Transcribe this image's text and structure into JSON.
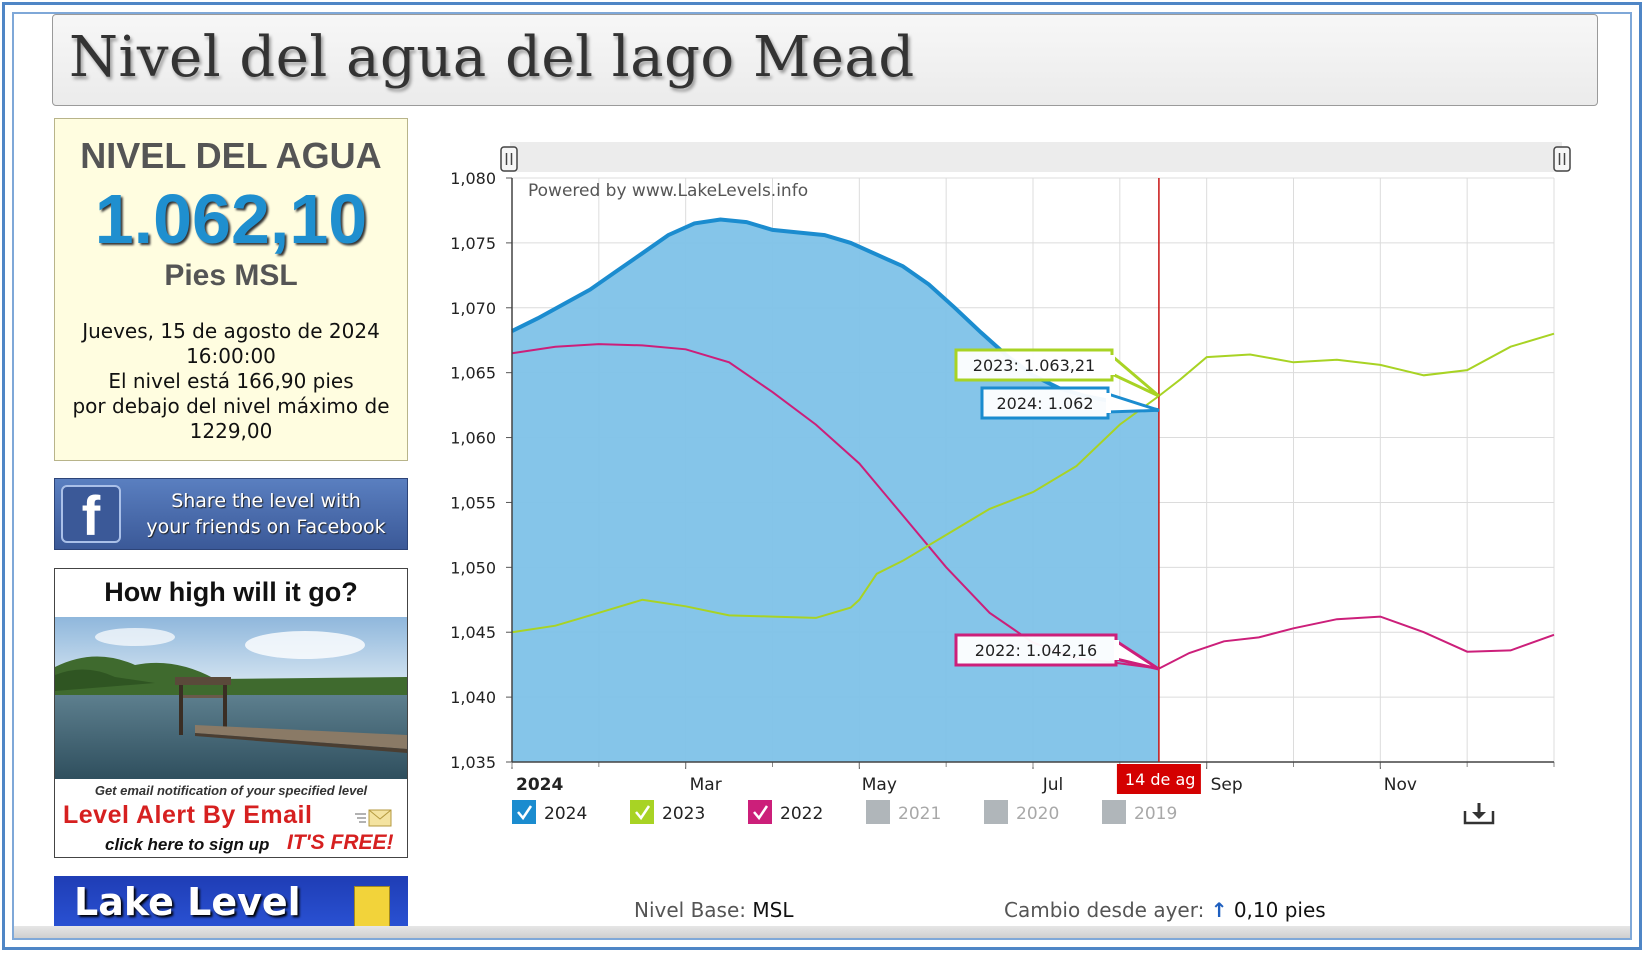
{
  "page_title": "Nivel del agua del lago Mead",
  "level_panel": {
    "heading": "NIVEL DEL AGUA",
    "value": "1.062,10",
    "unit": "Pies MSL",
    "lines": [
      "Jueves, 15 de agosto de 2024",
      "16:00:00",
      "El nivel está 166,90 pies",
      "por debajo del nivel máximo de",
      "1229,00"
    ]
  },
  "facebook": {
    "line1": "Share the level with",
    "line2": "your friends on Facebook"
  },
  "ad": {
    "heading": "How high will it go?",
    "small": "Get email notification of your specified level",
    "alert": "Level Alert By Email",
    "signup": "click here to sign up",
    "free": "IT'S FREE!"
  },
  "lake_level_banner": "Lake Level",
  "bottom": {
    "base_label": "Nivel Base:",
    "base_value": "MSL",
    "change_label": "Cambio desde ayer:",
    "change_arrow": "↑",
    "change_value": "0,10 pies"
  },
  "chart_data": {
    "type": "area",
    "watermark": "Powered by www.LakeLevels.info",
    "x_tick_labels": [
      {
        "label": "2024",
        "month": 0,
        "bold": true
      },
      {
        "label": "Mar",
        "month": 2
      },
      {
        "label": "May",
        "month": 4
      },
      {
        "label": "Jul",
        "month": 6
      },
      {
        "label": "Sep",
        "month": 8
      },
      {
        "label": "Nov",
        "month": 10
      }
    ],
    "x_range_months": [
      0,
      12
    ],
    "ylim": [
      1035,
      1080
    ],
    "y_ticks": [
      1035,
      1040,
      1045,
      1050,
      1055,
      1060,
      1065,
      1070,
      1075,
      1080
    ],
    "y_tick_labels": [
      "1,035",
      "1,040",
      "1,045",
      "1,050",
      "1,055",
      "1,060",
      "1,065",
      "1,070",
      "1,075",
      "1,080"
    ],
    "current_marker": {
      "month": 7.45,
      "label": "14 de ag"
    },
    "tooltips": [
      {
        "series": "2023",
        "text": "2023: 1.063,21"
      },
      {
        "series": "2024",
        "text": "2024: 1.062"
      },
      {
        "series": "2022",
        "text": "2022: 1.042,16"
      }
    ],
    "series": [
      {
        "name": "2024",
        "color": "#1b8ccf",
        "fill": "#7ec2e8",
        "checked": true,
        "points": [
          [
            0,
            1068.2
          ],
          [
            0.3,
            1069.2
          ],
          [
            0.6,
            1070.3
          ],
          [
            0.9,
            1071.4
          ],
          [
            1.2,
            1072.8
          ],
          [
            1.5,
            1074.2
          ],
          [
            1.8,
            1075.6
          ],
          [
            2.1,
            1076.5
          ],
          [
            2.4,
            1076.8
          ],
          [
            2.7,
            1076.6
          ],
          [
            3.0,
            1076.0
          ],
          [
            3.3,
            1075.8
          ],
          [
            3.6,
            1075.6
          ],
          [
            3.9,
            1075.0
          ],
          [
            4.2,
            1074.1
          ],
          [
            4.5,
            1073.2
          ],
          [
            4.8,
            1071.8
          ],
          [
            5.1,
            1070.0
          ],
          [
            5.4,
            1068.1
          ],
          [
            5.7,
            1066.3
          ],
          [
            6.0,
            1064.8
          ],
          [
            6.3,
            1063.8
          ],
          [
            6.6,
            1063.2
          ],
          [
            6.9,
            1062.8
          ],
          [
            7.2,
            1062.4
          ],
          [
            7.45,
            1062.1
          ]
        ]
      },
      {
        "name": "2023",
        "color": "#a8d324",
        "checked": true,
        "points": [
          [
            0,
            1045.0
          ],
          [
            0.5,
            1045.5
          ],
          [
            1.0,
            1046.5
          ],
          [
            1.5,
            1047.5
          ],
          [
            2.0,
            1047.0
          ],
          [
            2.5,
            1046.3
          ],
          [
            3.0,
            1046.2
          ],
          [
            3.5,
            1046.1
          ],
          [
            3.9,
            1046.9
          ],
          [
            4.0,
            1047.5
          ],
          [
            4.2,
            1049.5
          ],
          [
            4.5,
            1050.5
          ],
          [
            5.0,
            1052.5
          ],
          [
            5.5,
            1054.5
          ],
          [
            6.0,
            1055.8
          ],
          [
            6.5,
            1057.8
          ],
          [
            7.0,
            1061.0
          ],
          [
            7.45,
            1063.2
          ],
          [
            7.7,
            1064.5
          ],
          [
            8.0,
            1066.2
          ],
          [
            8.5,
            1066.4
          ],
          [
            9.0,
            1065.8
          ],
          [
            9.5,
            1066.0
          ],
          [
            10.0,
            1065.6
          ],
          [
            10.5,
            1064.8
          ],
          [
            11.0,
            1065.2
          ],
          [
            11.5,
            1067.0
          ],
          [
            12.0,
            1068.0
          ]
        ]
      },
      {
        "name": "2022",
        "color": "#cc1f7a",
        "checked": true,
        "points": [
          [
            0,
            1066.5
          ],
          [
            0.5,
            1067.0
          ],
          [
            1.0,
            1067.2
          ],
          [
            1.5,
            1067.1
          ],
          [
            2.0,
            1066.8
          ],
          [
            2.5,
            1065.8
          ],
          [
            3.0,
            1063.5
          ],
          [
            3.5,
            1061.0
          ],
          [
            4.0,
            1058.0
          ],
          [
            4.5,
            1054.0
          ],
          [
            5.0,
            1050.0
          ],
          [
            5.5,
            1046.5
          ],
          [
            6.0,
            1044.2
          ],
          [
            6.5,
            1043.0
          ],
          [
            7.0,
            1042.6
          ],
          [
            7.45,
            1042.2
          ],
          [
            7.8,
            1043.4
          ],
          [
            8.2,
            1044.3
          ],
          [
            8.6,
            1044.6
          ],
          [
            9.0,
            1045.3
          ],
          [
            9.5,
            1046.0
          ],
          [
            10.0,
            1046.2
          ],
          [
            10.5,
            1045.0
          ],
          [
            11.0,
            1043.5
          ],
          [
            11.5,
            1043.6
          ],
          [
            12.0,
            1044.8
          ]
        ]
      },
      {
        "name": "2021",
        "color": "#b0b6ba",
        "checked": false
      },
      {
        "name": "2020",
        "color": "#b0b6ba",
        "checked": false
      },
      {
        "name": "2019",
        "color": "#b0b6ba",
        "checked": false
      }
    ]
  }
}
